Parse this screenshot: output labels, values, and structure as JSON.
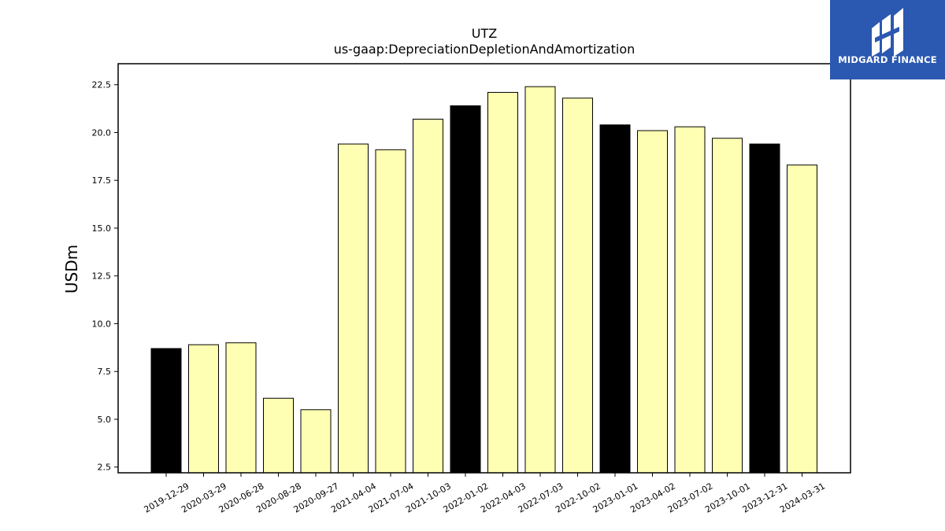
{
  "chart_data": {
    "type": "bar",
    "title": "UTZ",
    "subtitle": "us-gaap:DepreciationDepletionAndAmortization",
    "xlabel": "",
    "ylabel": "USDm",
    "ylim": [
      2.2,
      23.6
    ],
    "yticks": [
      2.5,
      5.0,
      7.5,
      10.0,
      12.5,
      15.0,
      17.5,
      20.0,
      22.5
    ],
    "grid": false,
    "categories": [
      "2019-12-29",
      "2020-03-29",
      "2020-06-28",
      "2020-08-28",
      "2020-09-27",
      "2021-04-04",
      "2021-07-04",
      "2021-10-03",
      "2022-01-02",
      "2022-04-03",
      "2022-07-03",
      "2022-10-02",
      "2023-01-01",
      "2023-04-02",
      "2023-07-02",
      "2023-10-01",
      "2023-12-31",
      "2024-03-31"
    ],
    "values": [
      8.7,
      8.9,
      9.0,
      6.1,
      5.5,
      19.4,
      19.1,
      20.7,
      21.4,
      22.1,
      22.4,
      21.8,
      20.4,
      20.1,
      20.3,
      19.7,
      19.4,
      18.3
    ],
    "fiscal_year_end": [
      true,
      false,
      false,
      false,
      false,
      false,
      false,
      false,
      true,
      false,
      false,
      false,
      true,
      false,
      false,
      false,
      true,
      false
    ],
    "colors": {
      "quarter": "#ffffb3",
      "fiscal_year_end": "#000000",
      "edge": "#000000"
    }
  },
  "logo": {
    "text": "MIDGARD FINANCE",
    "icon": "midgard-logo-icon",
    "background": "#2b58b0"
  }
}
